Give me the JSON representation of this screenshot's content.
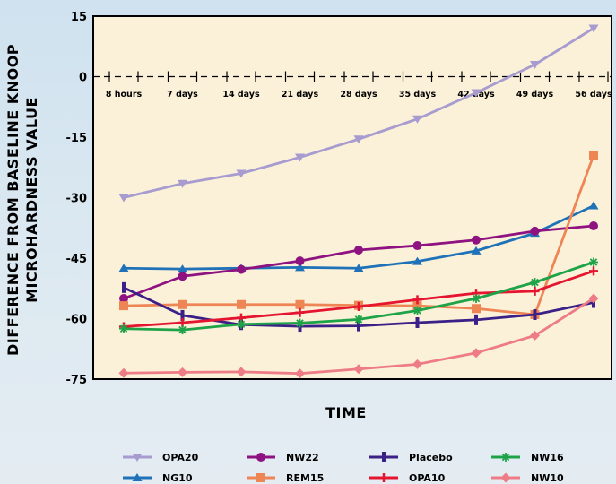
{
  "chart_data": {
    "type": "line",
    "title": "",
    "xlabel": "TIME",
    "ylabel": [
      "DIFFERENCE FROM BASELINE KNOOP",
      "MICROHARDNESS VALUE"
    ],
    "categories": [
      "8 hours",
      "7 days",
      "14 days",
      "21 days",
      "28 days",
      "35 days",
      "42 days",
      "49 days",
      "56 days"
    ],
    "yticks": [
      "15",
      "0",
      "-15",
      "-30",
      "-45",
      "-60",
      "-75"
    ],
    "ylim": [
      -75,
      15
    ],
    "grid": false,
    "legend_position": "bottom",
    "plot_background": "#fbf1d8",
    "series": [
      {
        "name": "OPA20",
        "color": "#a79bd0",
        "marker": "triangle-down",
        "values": [
          -30,
          -26.5,
          -24,
          -20,
          -15.5,
          -10.5,
          -4,
          3,
          12
        ]
      },
      {
        "name": "NG10",
        "color": "#1f72b8",
        "marker": "triangle-up",
        "values": [
          -47.5,
          -47.7,
          -47.5,
          -47.3,
          -47.5,
          -45.8,
          -43.2,
          -38.8,
          -32
        ]
      },
      {
        "name": "NW22",
        "color": "#8e1280",
        "marker": "circle",
        "values": [
          -55,
          -49.5,
          -47.8,
          -45.7,
          -43,
          -41.9,
          -40.5,
          -38.3,
          -37
        ]
      },
      {
        "name": "REM15",
        "color": "#ee8555",
        "marker": "square",
        "values": [
          -56.8,
          -56.5,
          -56.5,
          -56.5,
          -56.7,
          -56.8,
          -57.5,
          -59,
          -19.5
        ]
      },
      {
        "name": "Placebo",
        "color": "#3b2088",
        "marker": "bar",
        "values": [
          -52.3,
          -59.2,
          -61.5,
          -61.9,
          -61.8,
          -61,
          -60.3,
          -59,
          -56
        ]
      },
      {
        "name": "OPA10",
        "color": "#e5142f",
        "marker": "plus",
        "values": [
          -62,
          -61,
          -59.8,
          -58.5,
          -57,
          -55.3,
          -53.7,
          -53.2,
          -48.2
        ]
      },
      {
        "name": "NW16",
        "color": "#1ea348",
        "marker": "star",
        "values": [
          -62.5,
          -62.8,
          -61.4,
          -61.1,
          -60.2,
          -58,
          -55,
          -51,
          -46
        ]
      },
      {
        "name": "NW10",
        "color": "#ee7c86",
        "marker": "diamond",
        "values": [
          -73.5,
          -73.3,
          -73.2,
          -73.6,
          -72.5,
          -71.3,
          -68.5,
          -64.2,
          -55
        ]
      }
    ]
  }
}
